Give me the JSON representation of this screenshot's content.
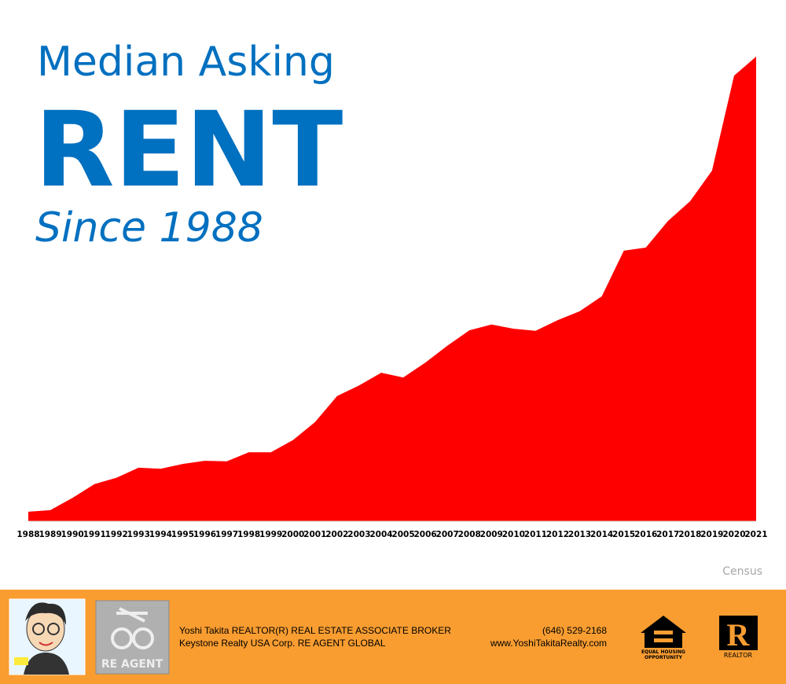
{
  "title_lines": [
    "Median Asking",
    "RENT",
    "Since 1988"
  ],
  "chart_data": {
    "type": "area",
    "color": "#ff0000",
    "categories": [
      "1988",
      "1989",
      "1990",
      "1991",
      "1992",
      "1993",
      "1994",
      "1995",
      "1996",
      "1997",
      "1998",
      "1999",
      "2000",
      "2001",
      "2002",
      "2003",
      "2004",
      "2005",
      "2006",
      "2007",
      "2008",
      "2009",
      "2010",
      "2011",
      "2012",
      "2013",
      "2014",
      "2015",
      "2016",
      "2017",
      "2018",
      "2019",
      "2020",
      "2021"
    ],
    "values": [
      343,
      346,
      369,
      395,
      407,
      426,
      424,
      433,
      439,
      438,
      455,
      455,
      478,
      512,
      561,
      581,
      605,
      596,
      624,
      656,
      685,
      696,
      688,
      684,
      704,
      721,
      749,
      835,
      841,
      891,
      928,
      986,
      1165,
      1201
    ],
    "ylim": [
      325,
      1201
    ]
  },
  "source": "Census",
  "footer": {
    "badge": "RE AGENT",
    "line1": "Yoshi Takita REALTOR(R) REAL ESTATE ASSOCIATE BROKER",
    "line2": "Keystone Realty USA Corp.  RE AGENT GLOBAL",
    "phone": "(646) 529-2168",
    "website": "www.YoshiTakitaRealty.com",
    "equal_housing": [
      "EQUAL HOUSING",
      "OPPORTUNITY"
    ],
    "realtor": "REALTOR"
  }
}
